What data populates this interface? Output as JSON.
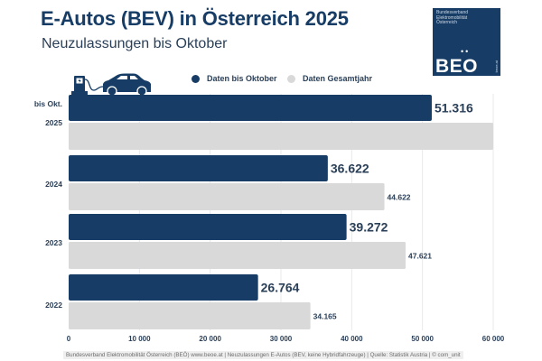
{
  "header": {
    "title": "E-Autos (BEV) in Österreich 2025",
    "subtitle": "Neuzulassungen bis Oktober"
  },
  "logo": {
    "org_line1": "Bundesverband",
    "org_line2": "Elektromobilität",
    "org_line3": "Österreich",
    "dots": "••",
    "wordmark": "BEO",
    "url": "beoe.at"
  },
  "icons": {
    "illustration": "ev-charging-car-icon"
  },
  "colors": {
    "primary": "#173d66",
    "secondary": "#d9d9d9",
    "grid": "#e6e9ee",
    "label": "#2a3f58"
  },
  "footer": {
    "text": "Bundesverband Elektromobilität Österreich (BEÖ) www.beoe.at | Neuzulassungen E-Autos (BEV, keine Hybridfahrzeuge) | Quelle: Statistik Austria | © com_unit"
  },
  "chart_data": {
    "type": "bar",
    "orientation": "horizontal",
    "title": "E-Autos (BEV) in Österreich 2025",
    "subtitle": "Neuzulassungen bis Oktober",
    "categories": [
      "2025",
      "2024",
      "2023",
      "2022"
    ],
    "category_sublabels": [
      "bis Okt.",
      "",
      "",
      ""
    ],
    "series": [
      {
        "name": "Daten bis Oktober",
        "color": "#173d66",
        "values": [
          51316,
          36622,
          39272,
          26764
        ],
        "labels": [
          "51.316",
          "36.622",
          "39.272",
          "26.764"
        ]
      },
      {
        "name": "Daten Gesamtjahr",
        "color": "#d9d9d9",
        "values": [
          null,
          44622,
          47621,
          34165
        ],
        "labels": [
          "",
          "44.622",
          "47.621",
          "34.165"
        ]
      }
    ],
    "placeholder_full_year_2025": 60000,
    "xlim": [
      0,
      60000
    ],
    "xticks": [
      0,
      10000,
      20000,
      30000,
      40000,
      50000,
      60000
    ],
    "xtick_labels": [
      "0",
      "10 000",
      "20 000",
      "30 000",
      "40 000",
      "50 000",
      "60 000"
    ],
    "grid": true,
    "legend": "top-right",
    "xlabel": "",
    "ylabel": ""
  }
}
